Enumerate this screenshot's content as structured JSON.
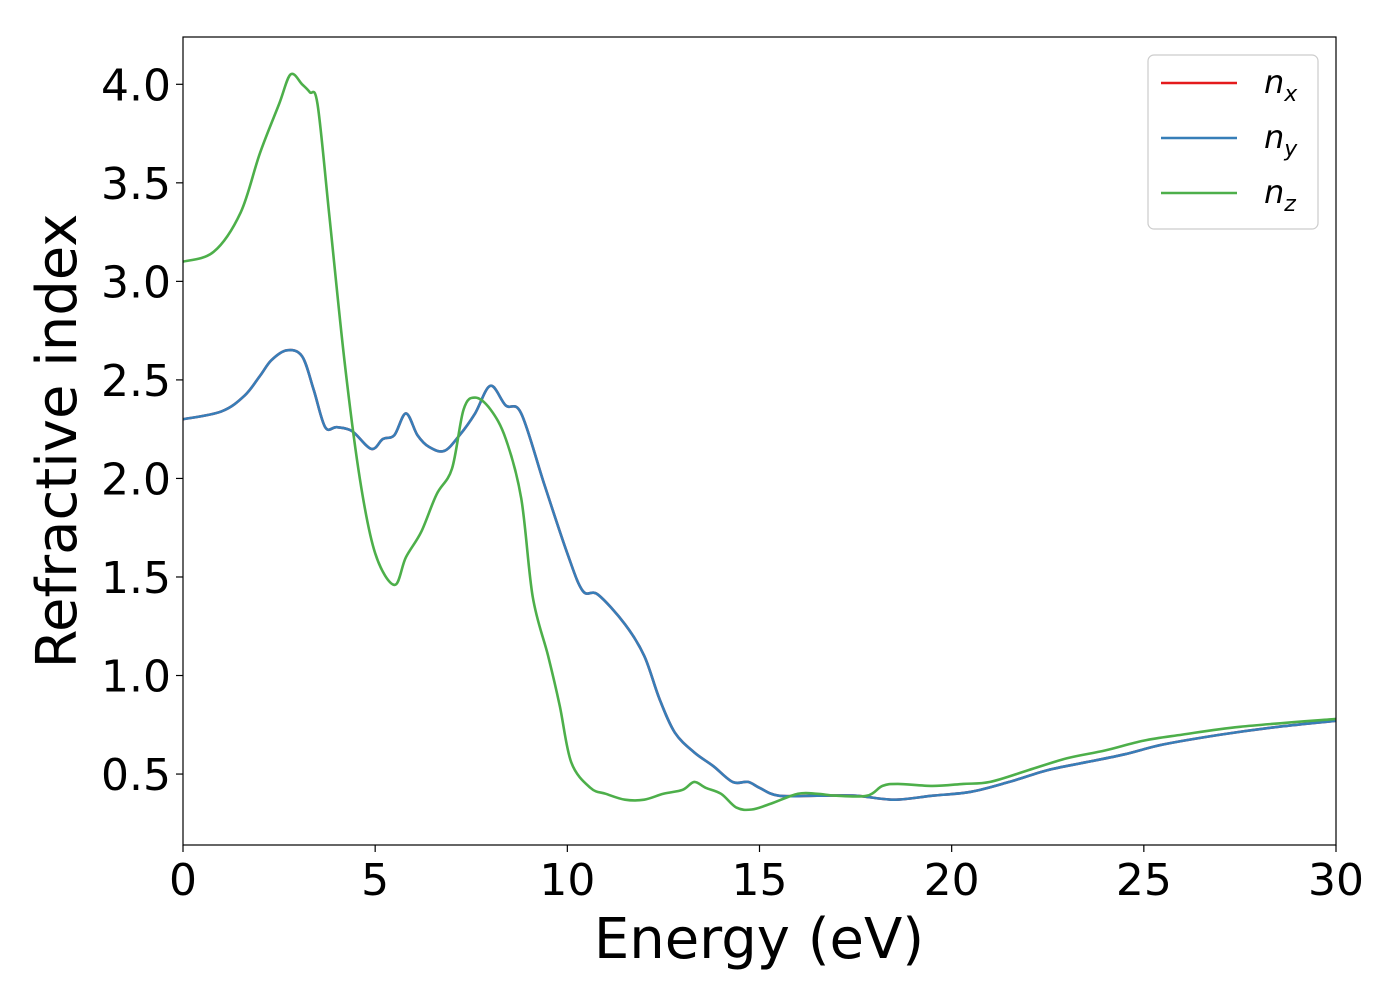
{
  "chart_data": {
    "type": "line",
    "title": "",
    "xlabel": "Energy (eV)",
    "ylabel": "Refractive index",
    "xlim": [
      0,
      30
    ],
    "ylim": [
      0.14,
      4.24
    ],
    "xticks": [
      0,
      5,
      10,
      15,
      20,
      25,
      30
    ],
    "xtick_labels": [
      "0",
      "5",
      "10",
      "15",
      "20",
      "25",
      "30"
    ],
    "yticks": [
      0.5,
      1.0,
      1.5,
      2.0,
      2.5,
      3.0,
      3.5,
      4.0
    ],
    "ytick_labels": [
      "0.5",
      "1.0",
      "1.5",
      "2.0",
      "2.5",
      "3.0",
      "3.5",
      "4.0"
    ],
    "grid": false,
    "legend_position": "top-right",
    "series": [
      {
        "name": "n_x",
        "legend_main": "n",
        "legend_sub": "x",
        "color": "#e41a1c",
        "points": [
          [
            0,
            2.3
          ],
          [
            1,
            2.34
          ],
          [
            1.6,
            2.42
          ],
          [
            2,
            2.52
          ],
          [
            2.3,
            2.6
          ],
          [
            2.7,
            2.65
          ],
          [
            3.1,
            2.62
          ],
          [
            3.4,
            2.45
          ],
          [
            3.7,
            2.26
          ],
          [
            4,
            2.26
          ],
          [
            4.4,
            2.24
          ],
          [
            4.9,
            2.15
          ],
          [
            5.2,
            2.2
          ],
          [
            5.5,
            2.22
          ],
          [
            5.8,
            2.33
          ],
          [
            6.1,
            2.22
          ],
          [
            6.4,
            2.16
          ],
          [
            6.8,
            2.14
          ],
          [
            7.2,
            2.22
          ],
          [
            7.6,
            2.33
          ],
          [
            8,
            2.47
          ],
          [
            8.4,
            2.37
          ],
          [
            8.8,
            2.33
          ],
          [
            9.4,
            1.97
          ],
          [
            10,
            1.62
          ],
          [
            10.4,
            1.43
          ],
          [
            10.8,
            1.41
          ],
          [
            11.5,
            1.26
          ],
          [
            12,
            1.1
          ],
          [
            12.4,
            0.88
          ],
          [
            12.8,
            0.71
          ],
          [
            13.3,
            0.61
          ],
          [
            13.8,
            0.54
          ],
          [
            14.3,
            0.46
          ],
          [
            14.7,
            0.46
          ],
          [
            15,
            0.43
          ],
          [
            15.5,
            0.39
          ],
          [
            16.5,
            0.39
          ],
          [
            17.5,
            0.39
          ],
          [
            18.5,
            0.37
          ],
          [
            19.5,
            0.39
          ],
          [
            20.5,
            0.41
          ],
          [
            21.5,
            0.46
          ],
          [
            22.5,
            0.52
          ],
          [
            23.5,
            0.56
          ],
          [
            24.5,
            0.6
          ],
          [
            25.5,
            0.65
          ],
          [
            27,
            0.7
          ],
          [
            28.5,
            0.74
          ],
          [
            30,
            0.77
          ]
        ]
      },
      {
        "name": "n_y",
        "legend_main": "n",
        "legend_sub": "y",
        "color": "#377eb8",
        "points": [
          [
            0,
            2.3
          ],
          [
            1,
            2.34
          ],
          [
            1.6,
            2.42
          ],
          [
            2,
            2.52
          ],
          [
            2.3,
            2.6
          ],
          [
            2.7,
            2.65
          ],
          [
            3.1,
            2.62
          ],
          [
            3.4,
            2.45
          ],
          [
            3.7,
            2.26
          ],
          [
            4,
            2.26
          ],
          [
            4.4,
            2.24
          ],
          [
            4.9,
            2.15
          ],
          [
            5.2,
            2.2
          ],
          [
            5.5,
            2.22
          ],
          [
            5.8,
            2.33
          ],
          [
            6.1,
            2.22
          ],
          [
            6.4,
            2.16
          ],
          [
            6.8,
            2.14
          ],
          [
            7.2,
            2.22
          ],
          [
            7.6,
            2.33
          ],
          [
            8,
            2.47
          ],
          [
            8.4,
            2.37
          ],
          [
            8.8,
            2.33
          ],
          [
            9.4,
            1.97
          ],
          [
            10,
            1.62
          ],
          [
            10.4,
            1.43
          ],
          [
            10.8,
            1.41
          ],
          [
            11.5,
            1.26
          ],
          [
            12,
            1.1
          ],
          [
            12.4,
            0.88
          ],
          [
            12.8,
            0.71
          ],
          [
            13.3,
            0.61
          ],
          [
            13.8,
            0.54
          ],
          [
            14.3,
            0.46
          ],
          [
            14.7,
            0.46
          ],
          [
            15,
            0.43
          ],
          [
            15.5,
            0.39
          ],
          [
            16.5,
            0.39
          ],
          [
            17.5,
            0.39
          ],
          [
            18.5,
            0.37
          ],
          [
            19.5,
            0.39
          ],
          [
            20.5,
            0.41
          ],
          [
            21.5,
            0.46
          ],
          [
            22.5,
            0.52
          ],
          [
            23.5,
            0.56
          ],
          [
            24.5,
            0.6
          ],
          [
            25.5,
            0.65
          ],
          [
            27,
            0.7
          ],
          [
            28.5,
            0.74
          ],
          [
            30,
            0.77
          ]
        ]
      },
      {
        "name": "n_z",
        "legend_main": "n",
        "legend_sub": "z",
        "color": "#4daf4a",
        "points": [
          [
            0,
            3.1
          ],
          [
            0.8,
            3.15
          ],
          [
            1.5,
            3.35
          ],
          [
            2,
            3.65
          ],
          [
            2.5,
            3.9
          ],
          [
            2.8,
            4.05
          ],
          [
            3.1,
            4.0
          ],
          [
            3.3,
            3.96
          ],
          [
            3.5,
            3.9
          ],
          [
            3.8,
            3.35
          ],
          [
            4.2,
            2.6
          ],
          [
            4.6,
            2.0
          ],
          [
            5,
            1.62
          ],
          [
            5.5,
            1.46
          ],
          [
            5.8,
            1.6
          ],
          [
            6.2,
            1.73
          ],
          [
            6.6,
            1.92
          ],
          [
            7,
            2.05
          ],
          [
            7.3,
            2.35
          ],
          [
            7.6,
            2.41
          ],
          [
            8,
            2.35
          ],
          [
            8.4,
            2.2
          ],
          [
            8.8,
            1.9
          ],
          [
            9.1,
            1.4
          ],
          [
            9.5,
            1.1
          ],
          [
            9.8,
            0.85
          ],
          [
            10.1,
            0.56
          ],
          [
            10.6,
            0.43
          ],
          [
            11,
            0.4
          ],
          [
            11.5,
            0.37
          ],
          [
            12,
            0.37
          ],
          [
            12.5,
            0.4
          ],
          [
            13,
            0.42
          ],
          [
            13.3,
            0.46
          ],
          [
            13.6,
            0.43
          ],
          [
            14,
            0.4
          ],
          [
            14.4,
            0.33
          ],
          [
            14.8,
            0.32
          ],
          [
            15.3,
            0.35
          ],
          [
            16,
            0.4
          ],
          [
            16.5,
            0.4
          ],
          [
            17,
            0.39
          ],
          [
            17.8,
            0.39
          ],
          [
            18.2,
            0.44
          ],
          [
            18.6,
            0.45
          ],
          [
            19.5,
            0.44
          ],
          [
            20.3,
            0.45
          ],
          [
            21,
            0.46
          ],
          [
            22,
            0.52
          ],
          [
            23,
            0.58
          ],
          [
            24,
            0.62
          ],
          [
            25,
            0.67
          ],
          [
            26,
            0.7
          ],
          [
            27.5,
            0.74
          ],
          [
            30,
            0.78
          ]
        ]
      }
    ]
  }
}
